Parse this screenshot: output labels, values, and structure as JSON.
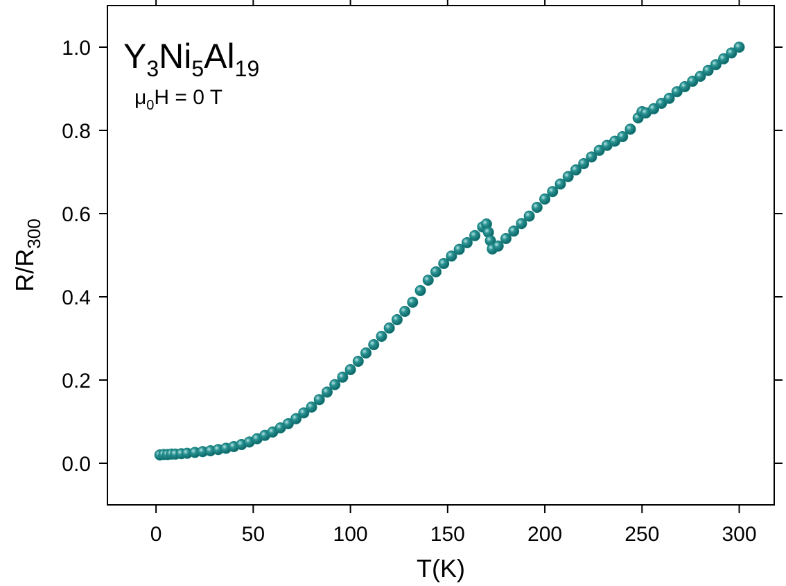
{
  "chart_data": {
    "type": "scatter",
    "x_label": "T(K)",
    "y_label": [
      "R/R",
      "300"
    ],
    "annotations": [
      {
        "parts": [
          "Y",
          "3",
          "Ni",
          "5",
          "Al",
          "19"
        ]
      },
      {
        "parts": [
          "μ",
          "0",
          "H = 0 T"
        ]
      }
    ],
    "xlim": [
      -25,
      318
    ],
    "ylim": [
      -0.1,
      1.1
    ],
    "xticks": [
      0,
      50,
      100,
      150,
      200,
      250,
      300
    ],
    "yticks": [
      {
        "value": 0,
        "label": "0.0"
      },
      0.2,
      0.4,
      0.6,
      0.8,
      {
        "value": 1,
        "label": "1.0"
      }
    ],
    "color": "#137b7b",
    "x": [
      2,
      4,
      6,
      8,
      10,
      13,
      16,
      20,
      24,
      28,
      32,
      36,
      40,
      44,
      48,
      52,
      56,
      60,
      64,
      68,
      72,
      76,
      80,
      84,
      88,
      92,
      96,
      100,
      104,
      108,
      112,
      116,
      120,
      124,
      128,
      132,
      136,
      140,
      144,
      148,
      152,
      156,
      160,
      164,
      168,
      170,
      171,
      172,
      173,
      176,
      180,
      184,
      188,
      192,
      196,
      200,
      204,
      208,
      212,
      216,
      220,
      224,
      228,
      232,
      236,
      240,
      244,
      248,
      250,
      252,
      256,
      260,
      264,
      268,
      272,
      276,
      280,
      284,
      288,
      292,
      296,
      300
    ],
    "values": [
      0.02,
      0.021,
      0.021,
      0.022,
      0.022,
      0.023,
      0.024,
      0.026,
      0.028,
      0.03,
      0.033,
      0.036,
      0.04,
      0.045,
      0.051,
      0.059,
      0.067,
      0.075,
      0.085,
      0.095,
      0.107,
      0.121,
      0.135,
      0.153,
      0.171,
      0.189,
      0.207,
      0.225,
      0.245,
      0.265,
      0.285,
      0.305,
      0.325,
      0.345,
      0.365,
      0.387,
      0.415,
      0.44,
      0.46,
      0.48,
      0.498,
      0.514,
      0.53,
      0.547,
      0.568,
      0.575,
      0.555,
      0.535,
      0.515,
      0.522,
      0.54,
      0.558,
      0.576,
      0.594,
      0.615,
      0.635,
      0.653,
      0.671,
      0.689,
      0.705,
      0.72,
      0.736,
      0.752,
      0.764,
      0.774,
      0.785,
      0.803,
      0.83,
      0.845,
      0.842,
      0.852,
      0.865,
      0.877,
      0.893,
      0.905,
      0.918,
      0.93,
      0.944,
      0.958,
      0.972,
      0.986,
      1.0
    ]
  }
}
